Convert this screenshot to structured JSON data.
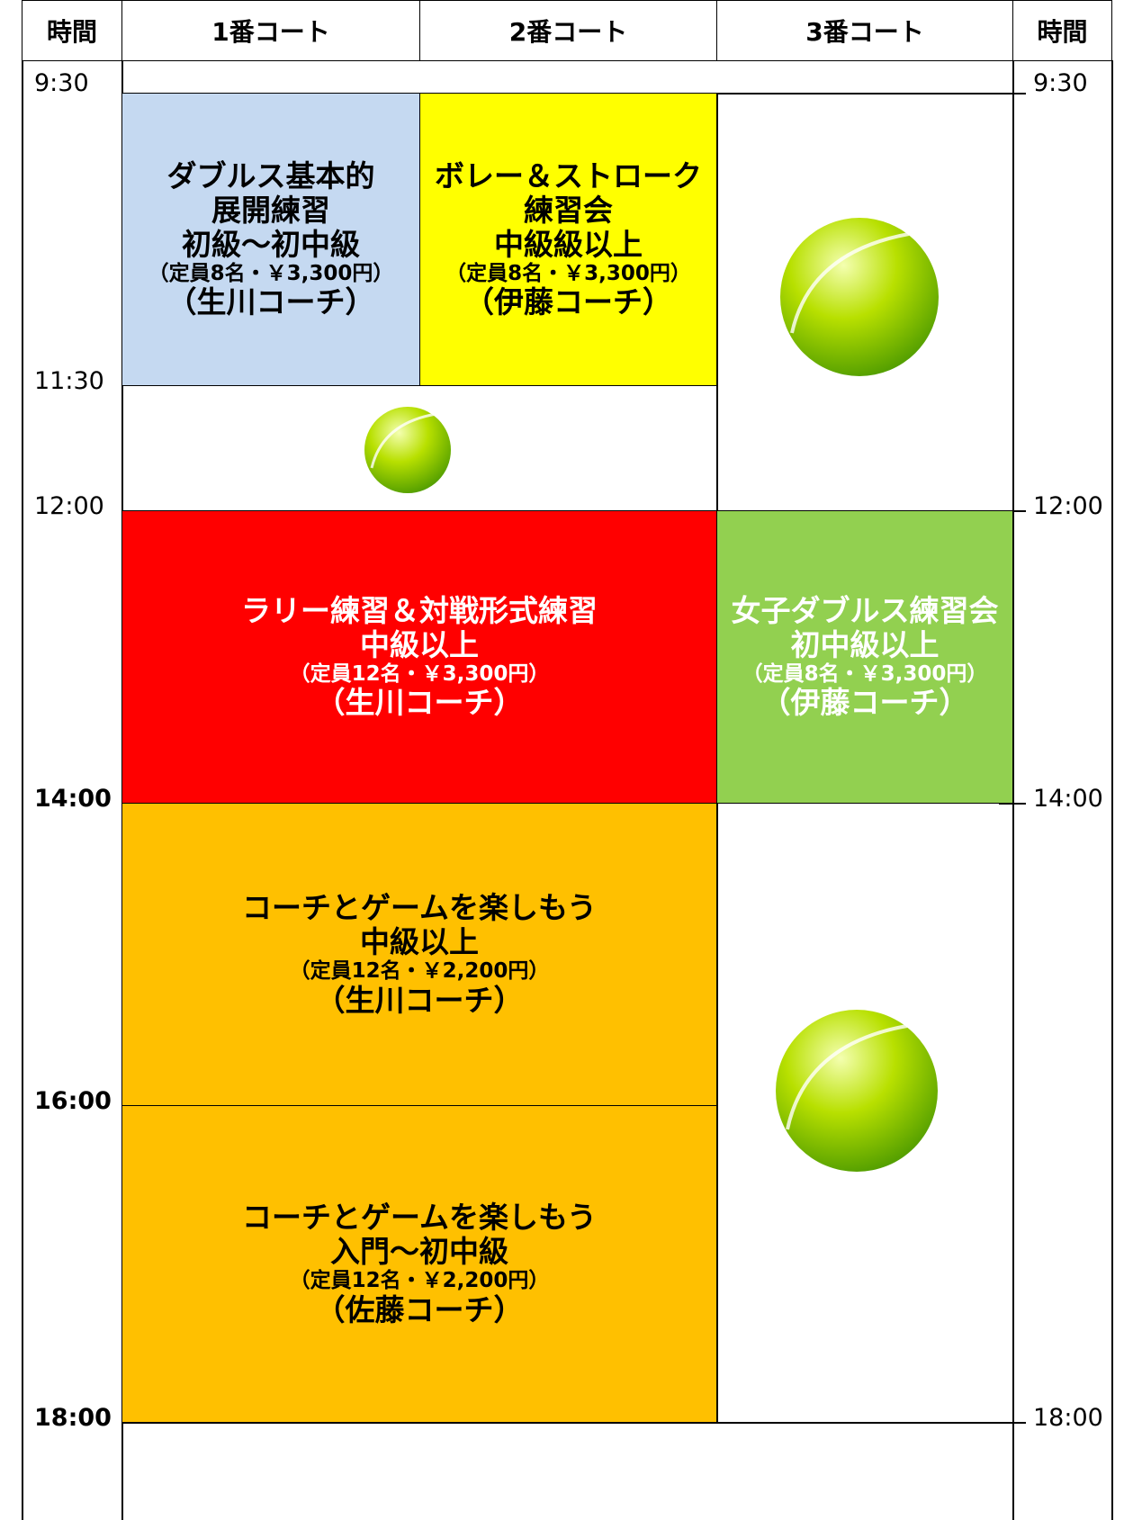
{
  "header": [
    "時間",
    "1番コート",
    "2番コート",
    "3番コート",
    "時間"
  ],
  "times_left": [
    "9:30",
    "11:30",
    "12:00",
    "14:00",
    "16:00",
    "18:00"
  ],
  "times_right": [
    "9:30",
    "12:00",
    "14:00",
    "18:00"
  ],
  "blocks": [
    {
      "lines": [
        "ダブルス基本的",
        "展開練習",
        "初級～初中級"
      ],
      "capacity": "（定員8名・￥3,300円）",
      "coach": "（生川コーチ）"
    },
    {
      "lines": [
        "ボレー＆ストローク",
        "練習会",
        "中級級以上"
      ],
      "capacity": "（定員8名・￥3,300円）",
      "coach": "（伊藤コーチ）"
    },
    {
      "lines": [
        "ラリー練習＆対戦形式練習",
        "中級以上"
      ],
      "capacity": "（定員12名・￥3,300円）",
      "coach": "（生川コーチ）"
    },
    {
      "lines": [
        "女子ダブルス練習会",
        "初中級以上"
      ],
      "capacity": "（定員8名・￥3,300円）",
      "coach": "（伊藤コーチ）"
    },
    {
      "lines": [
        "コーチとゲームを楽しもう",
        "中級以上"
      ],
      "capacity": "（定員12名・￥2,200円）",
      "coach": "（生川コーチ）"
    },
    {
      "lines": [
        "コーチとゲームを楽しもう",
        "入門～初中級"
      ],
      "capacity": "（定員12名・￥2,200円）",
      "coach": "（佐藤コーチ）"
    }
  ]
}
